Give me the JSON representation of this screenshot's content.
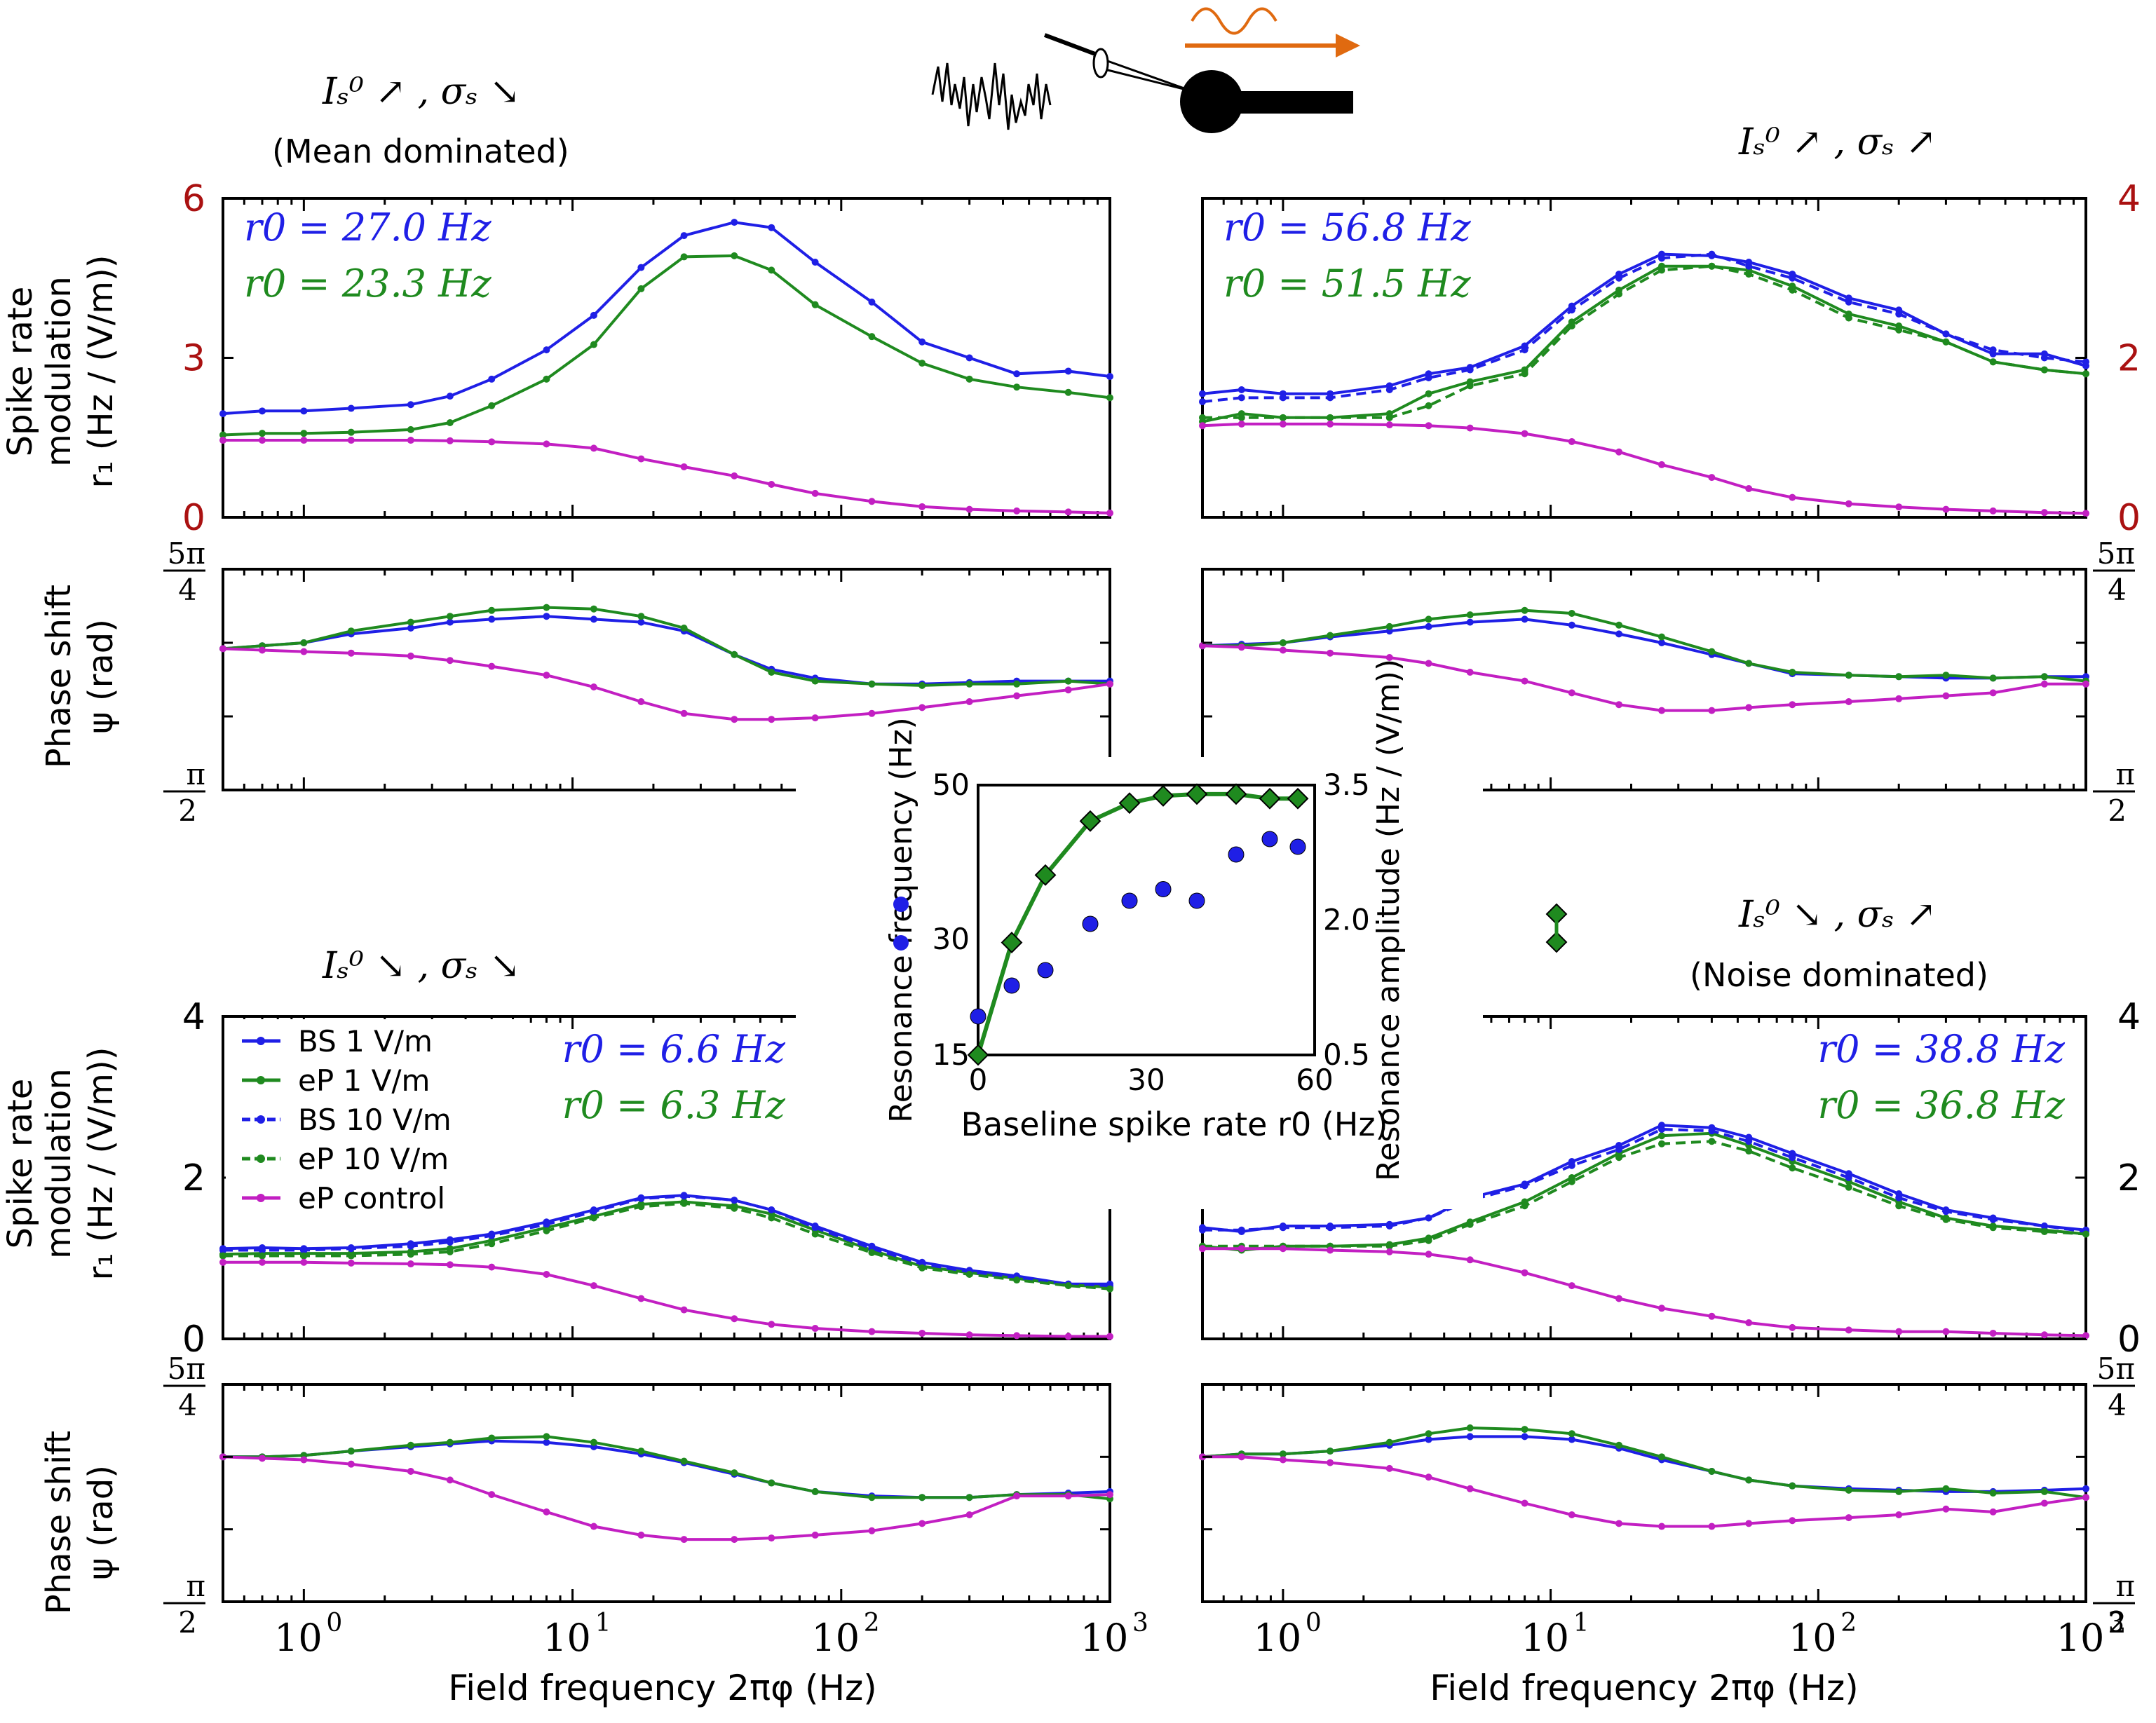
{
  "colors": {
    "blue": "#1f1fe6",
    "green": "#1f8a1f",
    "magenta": "#c21fc2",
    "red": "#aa1111",
    "orange": "#e06a10",
    "black": "#000000"
  },
  "condition_labels": {
    "tl": {
      "text": "Iₛ⁰ ↗ , σₛ ↘",
      "sub": "(Mean dominated)"
    },
    "tr": {
      "text": "Iₛ⁰ ↗ , σₛ ↗"
    },
    "bl": {
      "text": "Iₛ⁰ ↘ , σₛ ↘"
    },
    "br": {
      "text": "Iₛ⁰ ↘ , σₛ ↗",
      "sub": "(Noise dominated)"
    }
  },
  "axis_titles": {
    "rate_line1": "Spike rate",
    "rate_line2": "modulation",
    "rate_line3": "r₁ (Hz / (V/m))",
    "phase_line1": "Phase shift",
    "phase_line2": "ψ (rad)",
    "xlabel": "Field frequency 2πφ (Hz)"
  },
  "phase_ticks": {
    "top": "5π/4",
    "bottom": "π/2"
  },
  "legend": [
    {
      "key": "bs1",
      "label": "BS   1 V/m"
    },
    {
      "key": "ep1",
      "label": "eP   1 V/m"
    },
    {
      "key": "bs10",
      "label": "BS  10 V/m"
    },
    {
      "key": "ep10",
      "label": "eP  10 V/m"
    },
    {
      "key": "ctrl",
      "label": "eP  control"
    }
  ],
  "chart_data": [
    {
      "id": "tl_rate",
      "type": "line",
      "xscale": "log",
      "xlim": [
        0.5,
        1000
      ],
      "ylim": [
        0,
        6
      ],
      "yticks": [
        "0",
        "3",
        "6"
      ],
      "ylabel": "Spike rate modulation r1 (Hz / (V/m))",
      "annotations": [
        "r0 = 27.0 Hz",
        "r0 = 23.3 Hz"
      ],
      "x": [
        0.5,
        0.7,
        1,
        1.5,
        2.5,
        3.5,
        5,
        8,
        12,
        18,
        26,
        40,
        55,
        80,
        130,
        200,
        300,
        450,
        700,
        1000
      ],
      "series": [
        {
          "key": "bs1",
          "values": [
            1.95,
            2.0,
            2.0,
            2.05,
            2.12,
            2.28,
            2.6,
            3.15,
            3.8,
            4.7,
            5.3,
            5.55,
            5.45,
            4.8,
            4.05,
            3.3,
            3.0,
            2.7,
            2.75,
            2.65
          ]
        },
        {
          "key": "ep1",
          "values": [
            1.55,
            1.58,
            1.58,
            1.6,
            1.65,
            1.78,
            2.1,
            2.6,
            3.25,
            4.3,
            4.9,
            4.92,
            4.65,
            4.0,
            3.4,
            2.9,
            2.6,
            2.45,
            2.35,
            2.25
          ]
        },
        {
          "key": "ctrl",
          "values": [
            1.45,
            1.45,
            1.45,
            1.45,
            1.45,
            1.44,
            1.42,
            1.38,
            1.3,
            1.1,
            0.95,
            0.78,
            0.62,
            0.45,
            0.3,
            0.2,
            0.15,
            0.12,
            0.1,
            0.08
          ]
        }
      ]
    },
    {
      "id": "tr_rate",
      "type": "line",
      "xscale": "log",
      "xlim": [
        0.5,
        1000
      ],
      "ylim": [
        0,
        4
      ],
      "yticks": [
        "0",
        "2",
        "4"
      ],
      "ytick_side": "right",
      "annotations": [
        "r0 = 56.8 Hz",
        "r0 = 51.5 Hz"
      ],
      "x": [
        0.5,
        0.7,
        1,
        1.5,
        2.5,
        3.5,
        5,
        8,
        12,
        18,
        26,
        40,
        55,
        80,
        130,
        200,
        300,
        450,
        700,
        1000
      ],
      "series": [
        {
          "key": "bs1",
          "values": [
            1.55,
            1.6,
            1.55,
            1.55,
            1.65,
            1.8,
            1.88,
            2.15,
            2.65,
            3.05,
            3.3,
            3.28,
            3.2,
            3.05,
            2.75,
            2.6,
            2.3,
            2.05,
            2.05,
            1.9
          ]
        },
        {
          "key": "ep1",
          "values": [
            1.2,
            1.3,
            1.25,
            1.25,
            1.3,
            1.55,
            1.7,
            1.85,
            2.45,
            2.85,
            3.15,
            3.15,
            3.1,
            2.9,
            2.55,
            2.4,
            2.2,
            1.95,
            1.85,
            1.8
          ]
        },
        {
          "key": "bs10",
          "values": [
            1.45,
            1.5,
            1.5,
            1.5,
            1.6,
            1.75,
            1.85,
            2.1,
            2.6,
            3.0,
            3.25,
            3.3,
            3.15,
            3.0,
            2.7,
            2.55,
            2.3,
            2.1,
            2.0,
            1.95
          ]
        },
        {
          "key": "ep10",
          "values": [
            1.25,
            1.25,
            1.25,
            1.25,
            1.25,
            1.4,
            1.65,
            1.8,
            2.4,
            2.8,
            3.1,
            3.15,
            3.05,
            2.85,
            2.5,
            2.35,
            2.2,
            1.95,
            1.85,
            1.8
          ]
        },
        {
          "key": "ctrl",
          "values": [
            1.15,
            1.17,
            1.17,
            1.17,
            1.16,
            1.15,
            1.12,
            1.05,
            0.95,
            0.82,
            0.66,
            0.5,
            0.36,
            0.25,
            0.17,
            0.13,
            0.1,
            0.08,
            0.06,
            0.05
          ]
        }
      ]
    },
    {
      "id": "tl_phase",
      "type": "line",
      "xscale": "log",
      "xlim": [
        0.5,
        1000
      ],
      "ylim": [
        0.5,
        1.25
      ],
      "x": [
        0.5,
        0.7,
        1,
        1.5,
        2.5,
        3.5,
        5,
        8,
        12,
        18,
        26,
        40,
        55,
        80,
        130,
        200,
        300,
        450,
        700,
        1000
      ],
      "series": [
        {
          "key": "bs1",
          "values": [
            0.98,
            0.99,
            1.0,
            1.03,
            1.05,
            1.07,
            1.08,
            1.09,
            1.08,
            1.07,
            1.04,
            0.96,
            0.91,
            0.88,
            0.86,
            0.86,
            0.865,
            0.87,
            0.87,
            0.87
          ]
        },
        {
          "key": "ep1",
          "values": [
            0.98,
            0.99,
            1.0,
            1.04,
            1.07,
            1.09,
            1.11,
            1.12,
            1.115,
            1.09,
            1.05,
            0.96,
            0.9,
            0.87,
            0.86,
            0.855,
            0.86,
            0.86,
            0.87,
            0.86
          ]
        },
        {
          "key": "ctrl",
          "values": [
            0.98,
            0.975,
            0.97,
            0.965,
            0.955,
            0.94,
            0.92,
            0.89,
            0.85,
            0.8,
            0.76,
            0.74,
            0.74,
            0.745,
            0.76,
            0.78,
            0.8,
            0.82,
            0.84,
            0.86
          ]
        }
      ]
    },
    {
      "id": "tr_phase",
      "type": "line",
      "xscale": "log",
      "xlim": [
        0.5,
        1000
      ],
      "ylim": [
        0.5,
        1.25
      ],
      "x": [
        0.5,
        0.7,
        1,
        1.5,
        2.5,
        3.5,
        5,
        8,
        12,
        18,
        26,
        40,
        55,
        80,
        130,
        200,
        300,
        450,
        700,
        1000
      ],
      "series": [
        {
          "key": "bs1",
          "values": [
            0.99,
            0.995,
            1.0,
            1.02,
            1.04,
            1.055,
            1.07,
            1.08,
            1.06,
            1.03,
            1.0,
            0.96,
            0.93,
            0.895,
            0.89,
            0.885,
            0.88,
            0.88,
            0.885,
            0.885
          ]
        },
        {
          "key": "ep1",
          "values": [
            0.99,
            0.99,
            1.0,
            1.025,
            1.055,
            1.08,
            1.095,
            1.11,
            1.1,
            1.06,
            1.02,
            0.97,
            0.93,
            0.9,
            0.89,
            0.885,
            0.89,
            0.88,
            0.885,
            0.87
          ]
        },
        {
          "key": "ctrl",
          "values": [
            0.99,
            0.985,
            0.975,
            0.965,
            0.95,
            0.93,
            0.9,
            0.87,
            0.83,
            0.79,
            0.77,
            0.77,
            0.78,
            0.79,
            0.8,
            0.81,
            0.82,
            0.83,
            0.86,
            0.86
          ]
        }
      ]
    },
    {
      "id": "bl_rate",
      "type": "line",
      "xscale": "log",
      "xlim": [
        0.5,
        1000
      ],
      "ylim": [
        0,
        4
      ],
      "yticks": [
        "0",
        "2",
        "4"
      ],
      "annotations": [
        "r0 = 6.6 Hz",
        "r0 = 6.3 Hz"
      ],
      "x": [
        0.5,
        0.7,
        1,
        1.5,
        2.5,
        3.5,
        5,
        8,
        12,
        18,
        26,
        40,
        55,
        80,
        130,
        200,
        300,
        450,
        700,
        1000
      ],
      "series": [
        {
          "key": "bs1",
          "values": [
            1.12,
            1.13,
            1.12,
            1.13,
            1.18,
            1.23,
            1.3,
            1.45,
            1.6,
            1.75,
            1.78,
            1.72,
            1.6,
            1.4,
            1.15,
            0.95,
            0.85,
            0.78,
            0.68,
            0.68
          ]
        },
        {
          "key": "ep1",
          "values": [
            1.05,
            1.06,
            1.06,
            1.06,
            1.08,
            1.12,
            1.22,
            1.38,
            1.52,
            1.67,
            1.7,
            1.65,
            1.55,
            1.35,
            1.1,
            0.9,
            0.82,
            0.75,
            0.67,
            0.64
          ]
        },
        {
          "key": "bs10",
          "values": [
            1.1,
            1.1,
            1.1,
            1.12,
            1.15,
            1.2,
            1.28,
            1.42,
            1.58,
            1.74,
            1.77,
            1.72,
            1.6,
            1.38,
            1.12,
            0.93,
            0.83,
            0.76,
            0.68,
            0.66
          ]
        },
        {
          "key": "ep10",
          "values": [
            1.03,
            1.03,
            1.03,
            1.03,
            1.05,
            1.08,
            1.18,
            1.34,
            1.5,
            1.64,
            1.68,
            1.62,
            1.5,
            1.3,
            1.07,
            0.88,
            0.8,
            0.73,
            0.66,
            0.62
          ]
        },
        {
          "key": "ctrl",
          "values": [
            0.95,
            0.95,
            0.95,
            0.94,
            0.93,
            0.92,
            0.89,
            0.8,
            0.66,
            0.5,
            0.36,
            0.25,
            0.18,
            0.13,
            0.09,
            0.07,
            0.05,
            0.04,
            0.03,
            0.03
          ]
        }
      ]
    },
    {
      "id": "br_rate",
      "type": "line",
      "xscale": "log",
      "xlim": [
        0.5,
        1000
      ],
      "ylim": [
        0,
        4
      ],
      "yticks": [
        "0",
        "2",
        "4"
      ],
      "ytick_side": "right",
      "annotations": [
        "r0 = 38.8 Hz",
        "r0 = 36.8 Hz"
      ],
      "x": [
        0.5,
        0.7,
        1,
        1.5,
        2.5,
        3.5,
        5,
        8,
        12,
        18,
        26,
        40,
        55,
        80,
        130,
        200,
        300,
        450,
        700,
        1000
      ],
      "series": [
        {
          "key": "bs1",
          "values": [
            1.38,
            1.33,
            1.4,
            1.4,
            1.42,
            1.5,
            1.75,
            1.92,
            2.2,
            2.4,
            2.65,
            2.62,
            2.5,
            2.3,
            2.05,
            1.8,
            1.6,
            1.5,
            1.4,
            1.35
          ]
        },
        {
          "key": "ep1",
          "values": [
            1.15,
            1.1,
            1.15,
            1.15,
            1.17,
            1.25,
            1.45,
            1.7,
            2.0,
            2.3,
            2.52,
            2.55,
            2.4,
            2.2,
            1.95,
            1.7,
            1.5,
            1.4,
            1.35,
            1.3
          ]
        },
        {
          "key": "bs10",
          "values": [
            1.35,
            1.35,
            1.38,
            1.38,
            1.4,
            1.5,
            1.72,
            1.9,
            2.15,
            2.35,
            2.6,
            2.58,
            2.45,
            2.25,
            2.0,
            1.75,
            1.58,
            1.48,
            1.4,
            1.33
          ]
        },
        {
          "key": "ep10",
          "values": [
            1.15,
            1.15,
            1.15,
            1.15,
            1.15,
            1.22,
            1.42,
            1.65,
            1.95,
            2.25,
            2.42,
            2.45,
            2.33,
            2.12,
            1.88,
            1.65,
            1.48,
            1.38,
            1.33,
            1.3
          ]
        },
        {
          "key": "ctrl",
          "values": [
            1.12,
            1.12,
            1.12,
            1.1,
            1.08,
            1.05,
            0.98,
            0.82,
            0.66,
            0.5,
            0.38,
            0.28,
            0.2,
            0.14,
            0.11,
            0.09,
            0.09,
            0.07,
            0.05,
            0.04
          ]
        }
      ]
    },
    {
      "id": "bl_phase",
      "type": "line",
      "xscale": "log",
      "xlim": [
        0.5,
        1000
      ],
      "ylim": [
        0.5,
        1.25
      ],
      "x": [
        0.5,
        0.7,
        1,
        1.5,
        2.5,
        3.5,
        5,
        8,
        12,
        18,
        26,
        40,
        55,
        80,
        130,
        200,
        300,
        450,
        700,
        1000
      ],
      "series": [
        {
          "key": "bs1",
          "values": [
            1.0,
            1.0,
            1.005,
            1.02,
            1.035,
            1.045,
            1.055,
            1.05,
            1.035,
            1.01,
            0.98,
            0.94,
            0.91,
            0.88,
            0.865,
            0.86,
            0.86,
            0.87,
            0.875,
            0.88
          ]
        },
        {
          "key": "ep1",
          "values": [
            1.0,
            1.0,
            1.005,
            1.02,
            1.04,
            1.05,
            1.065,
            1.07,
            1.05,
            1.02,
            0.985,
            0.945,
            0.91,
            0.88,
            0.86,
            0.86,
            0.86,
            0.87,
            0.87,
            0.855
          ]
        },
        {
          "key": "ctrl",
          "values": [
            1.0,
            0.995,
            0.99,
            0.975,
            0.95,
            0.92,
            0.87,
            0.81,
            0.76,
            0.73,
            0.715,
            0.715,
            0.72,
            0.73,
            0.745,
            0.77,
            0.8,
            0.865,
            0.865,
            0.87
          ]
        }
      ]
    },
    {
      "id": "br_phase",
      "type": "line",
      "xscale": "log",
      "xlim": [
        0.5,
        1000
      ],
      "ylim": [
        0.5,
        1.25
      ],
      "x": [
        0.5,
        0.7,
        1,
        1.5,
        2.5,
        3.5,
        5,
        8,
        12,
        18,
        26,
        40,
        55,
        80,
        130,
        200,
        300,
        450,
        700,
        1000
      ],
      "series": [
        {
          "key": "bs1",
          "values": [
            1.0,
            1.01,
            1.01,
            1.02,
            1.04,
            1.06,
            1.07,
            1.07,
            1.06,
            1.03,
            0.99,
            0.95,
            0.92,
            0.9,
            0.89,
            0.885,
            0.88,
            0.88,
            0.885,
            0.89
          ]
        },
        {
          "key": "ep1",
          "values": [
            1.0,
            1.01,
            1.01,
            1.02,
            1.05,
            1.08,
            1.1,
            1.095,
            1.08,
            1.04,
            1.0,
            0.95,
            0.92,
            0.9,
            0.885,
            0.88,
            0.89,
            0.875,
            0.88,
            0.86
          ]
        },
        {
          "key": "ctrl",
          "values": [
            1.0,
            1.0,
            0.99,
            0.98,
            0.96,
            0.93,
            0.89,
            0.84,
            0.8,
            0.77,
            0.76,
            0.76,
            0.77,
            0.78,
            0.79,
            0.8,
            0.82,
            0.81,
            0.84,
            0.86
          ]
        }
      ]
    },
    {
      "id": "inset",
      "type": "scatter+line",
      "title": "",
      "xlabel": "Baseline spike rate r0 (Hz)",
      "ylabel_left": "Resonance frequency (Hz)",
      "ylabel_right": "Resonance amplitude (Hz / (V/m))",
      "xlim": [
        0,
        60
      ],
      "ylim_left": [
        15,
        50
      ],
      "ylim_right": [
        0.5,
        3.5
      ],
      "xticks": [
        "0",
        "30",
        "60"
      ],
      "yticks_left": [
        "15",
        "30",
        "50"
      ],
      "yticks_right": [
        "0.5",
        "2.0",
        "3.5"
      ],
      "freq": {
        "x": [
          0,
          6,
          12,
          20,
          27,
          33,
          39,
          46,
          52,
          57
        ],
        "y": [
          20,
          24,
          26,
          32,
          35,
          36.5,
          35,
          41,
          43,
          42
        ]
      },
      "amp": {
        "x": [
          0,
          6,
          12,
          20,
          27,
          33,
          39,
          46,
          52,
          57
        ],
        "y": [
          0.5,
          1.75,
          2.5,
          3.1,
          3.3,
          3.38,
          3.4,
          3.4,
          3.35,
          3.35
        ]
      }
    }
  ]
}
